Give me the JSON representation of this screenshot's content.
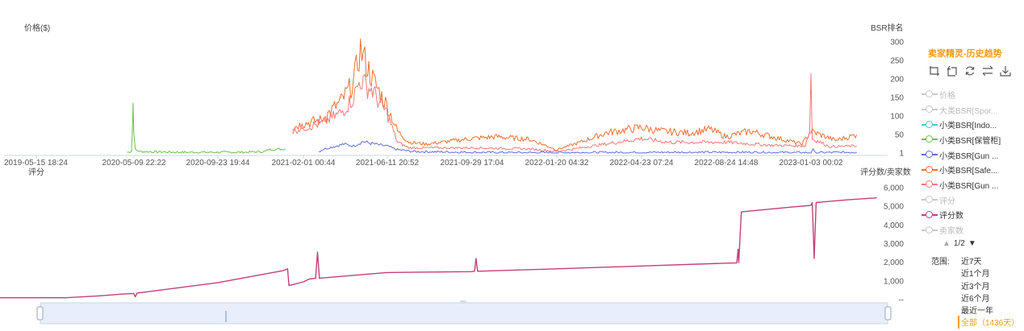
{
  "chart_data": [
    {
      "type": "line",
      "ylabel_left": "价格($)",
      "ylabel_right": "BSR排名",
      "y_right_ticks": [
        "300",
        "250",
        "200",
        "150",
        "100",
        "50",
        "1"
      ],
      "ylim_right": [
        1,
        300
      ],
      "x_tick_labels": [
        "2019-05-15 18:24",
        "2020-05-09 22:22",
        "2020-09-23 19:44",
        "2021-02-01 00:44",
        "2021-06-11 20:52",
        "2021-09-29 17:04",
        "2022-01-20 04:32",
        "2022-04-23 07:24",
        "2022-08-24 14:48",
        "2023-01-03 00:02"
      ],
      "series": [
        {
          "name": "小类BSR[保管柜]",
          "color": "#6cc04a",
          "points": [
            [
              "2020-04-15",
              3
            ],
            [
              "2020-04-25",
              4
            ],
            [
              "2020-05-01",
              8
            ],
            [
              "2020-05-05",
              80
            ],
            [
              "2020-05-07",
              135
            ],
            [
              "2020-05-09",
              70
            ],
            [
              "2020-05-12",
              10
            ],
            [
              "2020-05-20",
              5
            ],
            [
              "2020-06-15",
              4
            ],
            [
              "2020-08-01",
              3
            ],
            [
              "2020-09-23",
              3
            ],
            [
              "2020-11-01",
              3
            ],
            [
              "2020-12-05",
              5
            ],
            [
              "2020-12-10",
              10
            ],
            [
              "2021-01-05",
              12
            ]
          ]
        },
        {
          "name": "小类BSR[Gun ...",
          "color": "#5b6fe0",
          "points": [
            [
              "2021-02-25",
              5
            ],
            [
              "2021-03-05",
              12
            ],
            [
              "2021-03-20",
              18
            ],
            [
              "2021-04-05",
              25
            ],
            [
              "2021-04-20",
              20
            ],
            [
              "2021-05-05",
              32
            ],
            [
              "2021-05-15",
              28
            ],
            [
              "2021-06-01",
              22
            ],
            [
              "2021-06-11",
              20
            ],
            [
              "2021-06-25",
              10
            ],
            [
              "2021-07-15",
              5
            ],
            [
              "2021-09-29",
              3
            ],
            [
              "2021-12-01",
              2
            ],
            [
              "2022-01-20",
              2
            ],
            [
              "2022-06-01",
              3
            ],
            [
              "2022-10-01",
              3
            ],
            [
              "2022-12-20",
              2
            ],
            [
              "2023-01-03",
              2
            ],
            [
              "2023-01-06",
              10
            ],
            [
              "2023-01-09",
              2
            ],
            [
              "2023-03-15",
              3
            ]
          ]
        },
        {
          "name": "小类BSR[Safe...",
          "color": "#f07030",
          "points": [
            [
              "2021-01-15",
              70
            ],
            [
              "2021-02-01",
              80
            ],
            [
              "2021-03-01",
              90
            ],
            [
              "2021-04-01",
              140
            ],
            [
              "2021-04-20",
              190
            ],
            [
              "2021-05-01",
              280
            ],
            [
              "2021-05-10",
              240
            ],
            [
              "2021-05-20",
              200
            ],
            [
              "2021-06-01",
              160
            ],
            [
              "2021-06-11",
              130
            ],
            [
              "2021-06-25",
              60
            ],
            [
              "2021-07-10",
              30
            ],
            [
              "2021-08-01",
              25
            ],
            [
              "2021-09-29",
              40
            ],
            [
              "2021-11-01",
              45
            ],
            [
              "2021-12-15",
              38
            ],
            [
              "2022-01-20",
              10
            ],
            [
              "2022-02-15",
              30
            ],
            [
              "2022-03-15",
              55
            ],
            [
              "2022-04-23",
              70
            ],
            [
              "2022-05-20",
              60
            ],
            [
              "2022-07-01",
              55
            ],
            [
              "2022-08-01",
              65
            ],
            [
              "2022-08-24",
              45
            ],
            [
              "2022-10-01",
              60
            ],
            [
              "2022-11-15",
              40
            ],
            [
              "2022-12-20",
              25
            ],
            [
              "2023-01-03",
              60
            ],
            [
              "2023-02-10",
              35
            ],
            [
              "2023-03-15",
              50
            ]
          ]
        },
        {
          "name": "小类BSR[Gun ...",
          "color": "#f87878",
          "points": [
            [
              "2021-01-15",
              60
            ],
            [
              "2021-02-01",
              70
            ],
            [
              "2021-03-01",
              80
            ],
            [
              "2021-04-01",
              110
            ],
            [
              "2021-04-20",
              150
            ],
            [
              "2021-05-01",
              200
            ],
            [
              "2021-05-10",
              180
            ],
            [
              "2021-05-20",
              170
            ],
            [
              "2021-06-01",
              130
            ],
            [
              "2021-06-11",
              110
            ],
            [
              "2021-06-25",
              30
            ],
            [
              "2021-07-10",
              15
            ],
            [
              "2021-09-29",
              15
            ],
            [
              "2021-12-15",
              12
            ],
            [
              "2022-01-20",
              5
            ],
            [
              "2022-03-01",
              20
            ],
            [
              "2022-04-23",
              40
            ],
            [
              "2022-06-01",
              30
            ],
            [
              "2022-08-24",
              30
            ],
            [
              "2022-11-01",
              22
            ],
            [
              "2022-12-25",
              20
            ],
            [
              "2023-01-01",
              60
            ],
            [
              "2023-01-03",
              215
            ],
            [
              "2023-01-05",
              40
            ],
            [
              "2023-02-01",
              18
            ],
            [
              "2023-03-15",
              20
            ]
          ]
        }
      ]
    },
    {
      "type": "line",
      "ylabel_left": "评分",
      "ylabel_right": "评分数/卖家数",
      "y_right_ticks": [
        "6,000",
        "5,000",
        "4,000",
        "3,000",
        "2,000",
        "1,000",
        "--"
      ],
      "ylim_right": [
        0,
        6000
      ],
      "series": [
        {
          "name": "评分数",
          "color": "#c2407a",
          "points": [
            [
              "2019-05-15",
              0
            ],
            [
              "2019-09-01",
              100
            ],
            [
              "2020-01-01",
              200
            ],
            [
              "2020-04-01",
              300
            ],
            [
              "2020-05-09",
              330
            ],
            [
              "2020-05-12",
              150
            ],
            [
              "2020-05-15",
              350
            ],
            [
              "2020-09-23",
              900
            ],
            [
              "2021-01-01",
              1550
            ],
            [
              "2021-01-08",
              1650
            ],
            [
              "2021-01-10",
              750
            ],
            [
              "2021-02-01",
              950
            ],
            [
              "2021-02-10",
              1100
            ],
            [
              "2021-02-20",
              1150
            ],
            [
              "2021-02-23",
              2550
            ],
            [
              "2021-02-26",
              1150
            ],
            [
              "2021-06-11",
              1450
            ],
            [
              "2021-09-29",
              1500
            ],
            [
              "2021-10-03",
              1520
            ],
            [
              "2021-10-05",
              2200
            ],
            [
              "2021-10-07",
              1520
            ],
            [
              "2022-01-20",
              1650
            ],
            [
              "2022-04-23",
              1800
            ],
            [
              "2022-08-24",
              1950
            ],
            [
              "2022-09-10",
              1970
            ],
            [
              "2022-09-12",
              2700
            ],
            [
              "2022-09-13",
              1980
            ],
            [
              "2022-09-17",
              4700
            ],
            [
              "2022-12-01",
              4950
            ],
            [
              "2023-01-03",
              5050
            ],
            [
              "2023-01-05",
              5200
            ],
            [
              "2023-01-08",
              2200
            ],
            [
              "2023-01-11",
              5200
            ],
            [
              "2023-03-01",
              5350
            ],
            [
              "2023-04-15",
              5450
            ]
          ]
        }
      ]
    }
  ],
  "panel": {
    "title": "卖家精灵-历史趋势",
    "tools": [
      "zoom-icon",
      "zoom-reset-icon",
      "restore-icon",
      "swap-icon",
      "download-icon"
    ],
    "legend": [
      {
        "label": "价格",
        "color": "#c8c8c8"
      },
      {
        "label": "大类BSR[Spor...",
        "color": "#c8c8c8"
      },
      {
        "label": "小类BSR[Indo...",
        "color": "#44c8d8"
      },
      {
        "label": "小类BSR[保管柜]",
        "color": "#6cc04a"
      },
      {
        "label": "小类BSR[Gun ...",
        "color": "#5b6fe0"
      },
      {
        "label": "小类BSR[Safe...",
        "color": "#f07030"
      },
      {
        "label": "小类BSR[Gun ...",
        "color": "#f87878"
      },
      {
        "label": "评分",
        "color": "#c8c8c8"
      },
      {
        "label": "评分数",
        "color": "#c2407a"
      },
      {
        "label": "卖家数",
        "color": "#c8c8c8"
      }
    ],
    "pager": {
      "up": "▲",
      "text": "1/2",
      "down": "▼"
    },
    "range_label": "范围:",
    "range_options": [
      "近7天",
      "近1个月",
      "近3个月",
      "近6个月",
      "最近一年",
      "全部（1436天）"
    ],
    "range_active": 5
  }
}
